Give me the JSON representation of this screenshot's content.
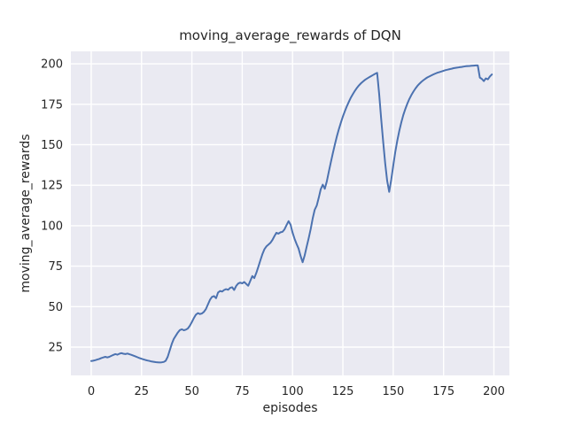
{
  "chart_data": {
    "type": "line",
    "title": "moving_average_rewards of DQN",
    "xlabel": "episodes",
    "ylabel": "moving_average_rewards",
    "x_ticks": [
      0,
      25,
      50,
      75,
      100,
      125,
      150,
      175,
      200
    ],
    "y_ticks": [
      25,
      50,
      75,
      100,
      125,
      150,
      175,
      200
    ],
    "xlim": [
      -10.1,
      207.7
    ],
    "ylim": [
      7.5,
      207.7
    ],
    "grid": true,
    "legend_position": "none",
    "x_start": 0,
    "x_step": 1,
    "series": [
      {
        "name": "moving_average_rewards",
        "color": "#4c72b0",
        "values": [
          16.4,
          16.6,
          16.9,
          17.3,
          17.7,
          18.2,
          18.6,
          19.0,
          18.6,
          19.0,
          19.6,
          20.2,
          20.7,
          20.3,
          20.9,
          21.3,
          20.9,
          20.7,
          21.0,
          20.6,
          20.2,
          19.7,
          19.2,
          18.7,
          18.2,
          17.8,
          17.4,
          17.0,
          16.7,
          16.4,
          16.1,
          15.9,
          15.7,
          15.6,
          15.5,
          15.6,
          15.8,
          16.5,
          19.0,
          23.0,
          27.0,
          30.0,
          32.0,
          34.0,
          35.5,
          36.0,
          35.4,
          35.8,
          36.5,
          38.2,
          40.5,
          43.0,
          45.0,
          46.0,
          45.4,
          45.8,
          46.8,
          48.6,
          51.5,
          54.2,
          56.0,
          56.5,
          55.2,
          58.7,
          59.7,
          59.3,
          60.3,
          60.8,
          60.4,
          61.6,
          62.0,
          60.3,
          62.8,
          64.3,
          64.8,
          64.4,
          65.2,
          64.0,
          62.9,
          65.9,
          68.9,
          67.6,
          70.8,
          74.6,
          78.6,
          82.3,
          85.4,
          87.2,
          88.3,
          89.4,
          91.2,
          93.6,
          95.6,
          95.1,
          95.9,
          96.2,
          97.7,
          100.3,
          102.8,
          100.6,
          95.8,
          91.9,
          88.7,
          85.9,
          81.3,
          77.4,
          81.6,
          86.9,
          92.2,
          97.9,
          104.6,
          109.8,
          112.4,
          117.3,
          122.4,
          125.3,
          122.8,
          127.4,
          133.2,
          139.1,
          144.8,
          150.2,
          155.1,
          159.6,
          163.7,
          167.4,
          170.8,
          173.9,
          176.7,
          179.2,
          181.4,
          183.4,
          185.2,
          186.7,
          188.0,
          189.1,
          190.1,
          190.9,
          191.7,
          192.4,
          193.1,
          193.8,
          194.4,
          181.2,
          166.3,
          151.9,
          138.4,
          127.8,
          120.9,
          128.4,
          137.2,
          145.3,
          152.4,
          158.6,
          163.9,
          168.3,
          172.1,
          175.4,
          178.2,
          180.7,
          182.8,
          184.7,
          186.3,
          187.7,
          188.9,
          189.9,
          190.8,
          191.6,
          192.3,
          192.9,
          193.5,
          194.0,
          194.5,
          194.9,
          195.3,
          195.7,
          196.1,
          196.4,
          196.7,
          197.0,
          197.3,
          197.5,
          197.7,
          197.9,
          198.1,
          198.3,
          198.5,
          198.6,
          198.7,
          198.8,
          198.9,
          199.0,
          199.0,
          191.5,
          190.7,
          189.3,
          191.0,
          190.4,
          192.2,
          193.4
        ]
      }
    ],
    "colors": {
      "figure_background": "#ffffff",
      "plot_background": "#eaeaf2",
      "grid": "#ffffff",
      "text": "#262626",
      "line": "#4c72b0"
    }
  }
}
